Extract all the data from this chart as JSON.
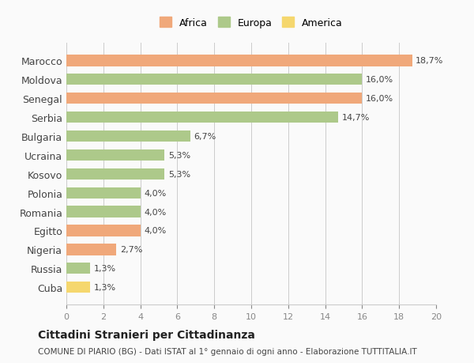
{
  "categories": [
    "Cuba",
    "Russia",
    "Nigeria",
    "Egitto",
    "Romania",
    "Polonia",
    "Kosovo",
    "Ucraina",
    "Bulgaria",
    "Serbia",
    "Senegal",
    "Moldova",
    "Marocco"
  ],
  "values": [
    1.3,
    1.3,
    2.7,
    4.0,
    4.0,
    4.0,
    5.3,
    5.3,
    6.7,
    14.7,
    16.0,
    16.0,
    18.7
  ],
  "labels": [
    "1,3%",
    "1,3%",
    "2,7%",
    "4,0%",
    "4,0%",
    "4,0%",
    "5,3%",
    "5,3%",
    "6,7%",
    "14,7%",
    "16,0%",
    "16,0%",
    "18,7%"
  ],
  "colors": [
    "#f5d76e",
    "#adc98a",
    "#f0a87a",
    "#f0a87a",
    "#adc98a",
    "#adc98a",
    "#adc98a",
    "#adc98a",
    "#adc98a",
    "#adc98a",
    "#f0a87a",
    "#adc98a",
    "#f0a87a"
  ],
  "continent": [
    "America",
    "Europa",
    "Africa",
    "Africa",
    "Europa",
    "Europa",
    "Europa",
    "Europa",
    "Europa",
    "Europa",
    "Africa",
    "Europa",
    "Africa"
  ],
  "legend_labels": [
    "Africa",
    "Europa",
    "America"
  ],
  "legend_colors": [
    "#f0a87a",
    "#adc98a",
    "#f5d76e"
  ],
  "title": "Cittadini Stranieri per Cittadinanza",
  "subtitle": "COMUNE DI PIARIO (BG) - Dati ISTAT al 1° gennaio di ogni anno - Elaborazione TUTTITALIA.IT",
  "xlim": [
    0,
    20
  ],
  "xticks": [
    0,
    2,
    4,
    6,
    8,
    10,
    12,
    14,
    16,
    18,
    20
  ],
  "background_color": "#fafafa",
  "grid_color": "#cccccc",
  "bar_height": 0.6
}
